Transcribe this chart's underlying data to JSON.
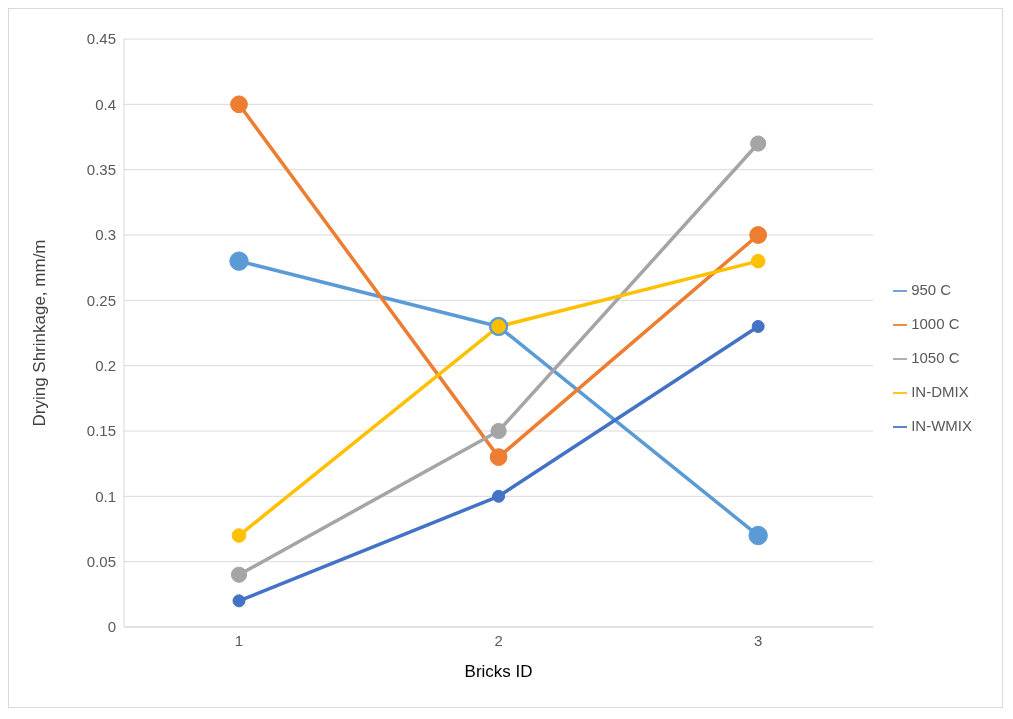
{
  "chart_data": {
    "type": "line",
    "xlabel": "Bricks ID",
    "ylabel": "Drying Shrinkage, mm/m",
    "categories": [
      "1",
      "2",
      "3"
    ],
    "series": [
      {
        "name": "950 C",
        "color": "#5b9bd5",
        "values": [
          0.28,
          0.23,
          0.07
        ]
      },
      {
        "name": "1000 C",
        "color": "#ed7d31",
        "values": [
          0.4,
          0.13,
          0.3
        ]
      },
      {
        "name": "1050 C",
        "color": "#a5a5a5",
        "values": [
          0.04,
          0.15,
          0.37
        ]
      },
      {
        "name": "IN-DMIX",
        "color": "#ffc000",
        "values": [
          0.07,
          0.23,
          0.28
        ]
      },
      {
        "name": "IN-WMIX",
        "color": "#4472c4",
        "values": [
          0.02,
          0.1,
          0.23
        ]
      }
    ],
    "ylim": [
      0,
      0.45
    ],
    "yticks": [
      0,
      0.05,
      0.1,
      0.15,
      0.2,
      0.25,
      0.3,
      0.35,
      0.4,
      0.45
    ],
    "grid": "y",
    "legend": "right",
    "marker": "circle",
    "line_style": "solid"
  }
}
